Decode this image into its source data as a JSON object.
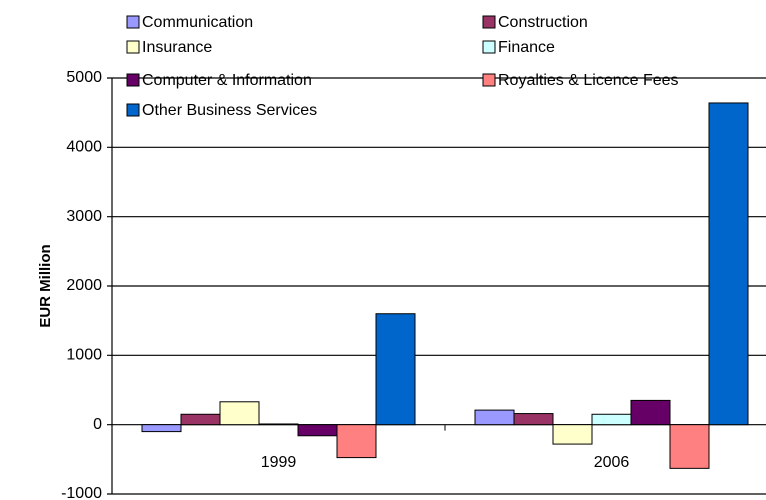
{
  "chart_data": {
    "type": "bar",
    "y_label": "EUR Million",
    "categories": [
      "1999",
      "2006"
    ],
    "series": [
      {
        "name": "Communication",
        "color": "#9999ff",
        "values": [
          -100,
          210
        ]
      },
      {
        "name": "Construction",
        "color": "#993366",
        "values": [
          150,
          160
        ]
      },
      {
        "name": "Insurance",
        "color": "#ffffcc",
        "values": [
          330,
          -280
        ]
      },
      {
        "name": "Finance",
        "color": "#ccffff",
        "values": [
          10,
          150
        ]
      },
      {
        "name": "Computer & Information",
        "color": "#660066",
        "values": [
          -160,
          350
        ]
      },
      {
        "name": "Royalties & Licence Fees",
        "color": "#ff8080",
        "values": [
          -475,
          -630
        ]
      },
      {
        "name": "Other Business Services",
        "color": "#0066cc",
        "values": [
          1600,
          4640
        ]
      }
    ],
    "ylim": [
      -1000,
      5000
    ],
    "yticks": [
      -1000,
      0,
      1000,
      2000,
      3000,
      4000,
      5000
    ],
    "grid": true
  }
}
